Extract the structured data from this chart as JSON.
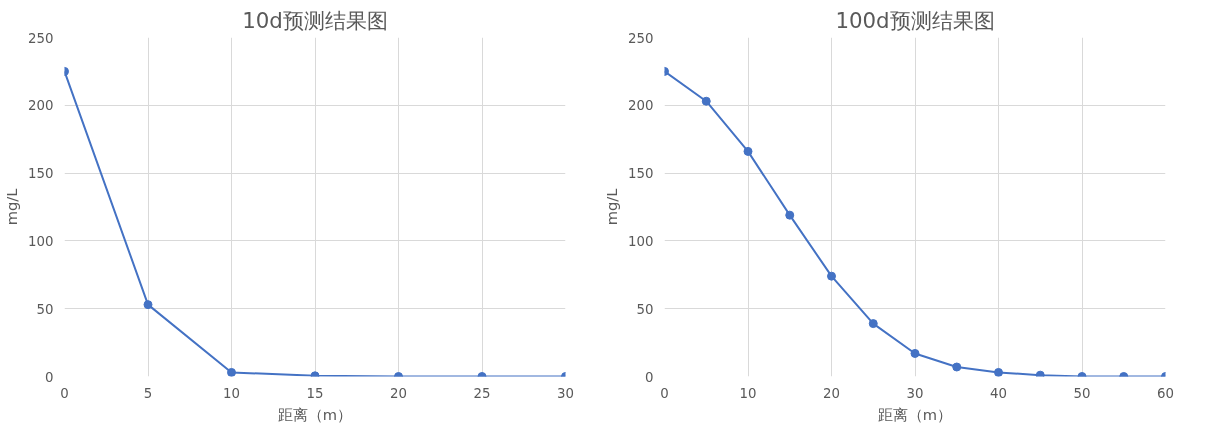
{
  "chart_data": [
    {
      "type": "line",
      "title": "10d预测结果图",
      "xlabel": "距离（m）",
      "ylabel": "mg/L",
      "x": [
        0,
        5,
        10,
        15,
        20,
        25,
        30
      ],
      "series": [
        {
          "color": "#4472c4",
          "values": [
            225,
            53,
            3,
            0.5,
            0,
            0,
            0
          ]
        }
      ],
      "xlim": [
        0,
        30
      ],
      "xticks": [
        0,
        5,
        10,
        15,
        20,
        25,
        30
      ],
      "ylim": [
        0,
        250
      ],
      "yticks": [
        0,
        50,
        100,
        150,
        200,
        250
      ],
      "grid": true,
      "marker": "circle",
      "line_style": "solid"
    },
    {
      "type": "line",
      "title": "100d预测结果图",
      "xlabel": "距离（m）",
      "ylabel": "mg/L",
      "x": [
        0,
        5,
        10,
        15,
        20,
        25,
        30,
        35,
        40,
        45,
        50,
        55,
        60
      ],
      "series": [
        {
          "color": "#4472c4",
          "values": [
            225,
            203,
            166,
            119,
            74,
            39,
            17,
            7,
            3,
            1,
            0,
            0,
            0
          ]
        }
      ],
      "xlim": [
        0,
        60
      ],
      "xticks": [
        0,
        10,
        20,
        30,
        40,
        50,
        60
      ],
      "ylim": [
        0,
        250
      ],
      "yticks": [
        0,
        50,
        100,
        150,
        200,
        250
      ],
      "grid": true,
      "marker": "circle",
      "line_style": "solid"
    }
  ]
}
